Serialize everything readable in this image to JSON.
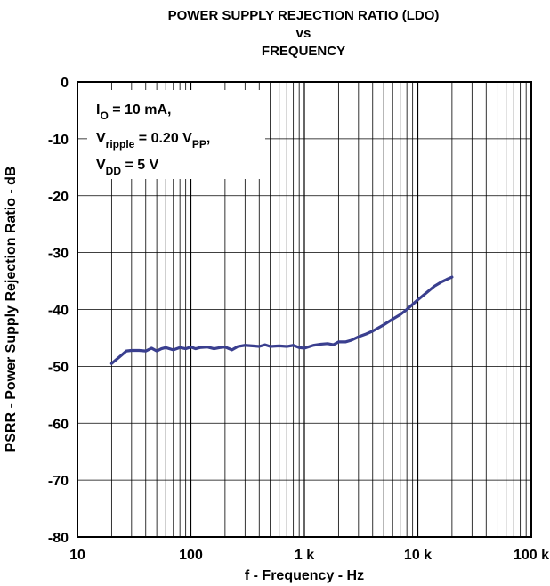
{
  "chart_data": {
    "type": "line",
    "title": [
      "POWER SUPPLY REJECTION RATIO (LDO)",
      "vs",
      "FREQUENCY"
    ],
    "xlabel": "f - Frequency - Hz",
    "ylabel": "PSRR - Power Supply Rejection Ratio - dB",
    "x_scale": "log",
    "xlim": [
      10,
      100000
    ],
    "ylim": [
      -80,
      0
    ],
    "x_ticks": [
      10,
      100,
      1000,
      10000,
      100000
    ],
    "x_tick_labels": [
      "10",
      "100",
      "1 k",
      "10 k",
      "100 k"
    ],
    "y_ticks": [
      0,
      -10,
      -20,
      -30,
      -40,
      -50,
      -60,
      -70,
      -80
    ],
    "y_tick_labels": [
      "0",
      "-10",
      "-20",
      "-30",
      "-40",
      "-50",
      "-60",
      "-70",
      "-80"
    ],
    "grid": true,
    "line_color": "#3a3f8f",
    "annotation": {
      "line1": {
        "main": "I",
        "sub": "O",
        "rest": " = 10 mA,"
      },
      "line2": {
        "main": "V",
        "sub": "ripple",
        "mid": " = 0.20 V",
        "sub2": "PP",
        "rest": ","
      },
      "line3": {
        "main": "V",
        "sub": "DD",
        "rest": " = 5 V"
      }
    },
    "series": [
      {
        "x": [
          20,
          23,
          27,
          30,
          35,
          40,
          45,
          50,
          55,
          60,
          70,
          80,
          90,
          100,
          110,
          120,
          140,
          160,
          180,
          200,
          230,
          260,
          300,
          350,
          400,
          450,
          500,
          600,
          700,
          800,
          900,
          1000,
          1200,
          1400,
          1600,
          1800,
          2000,
          2300,
          2600,
          3000,
          3500,
          4000,
          5000,
          6000,
          7000,
          8000,
          9000,
          10000,
          12000,
          14000,
          16000,
          18000,
          20000
        ],
        "y": [
          -49.5,
          -48.5,
          -47.3,
          -47.2,
          -47.2,
          -47.3,
          -46.8,
          -47.3,
          -46.9,
          -46.7,
          -47.1,
          -46.7,
          -46.9,
          -46.6,
          -46.9,
          -46.7,
          -46.6,
          -46.9,
          -46.7,
          -46.6,
          -47.1,
          -46.5,
          -46.3,
          -46.4,
          -46.5,
          -46.2,
          -46.5,
          -46.4,
          -46.5,
          -46.3,
          -46.7,
          -46.8,
          -46.3,
          -46.1,
          -46.0,
          -46.2,
          -45.7,
          -45.7,
          -45.4,
          -44.8,
          -44.3,
          -43.8,
          -42.7,
          -41.7,
          -40.9,
          -40.0,
          -39.1,
          -38.3,
          -37.0,
          -35.9,
          -35.2,
          -34.7,
          -34.3
        ]
      }
    ]
  }
}
